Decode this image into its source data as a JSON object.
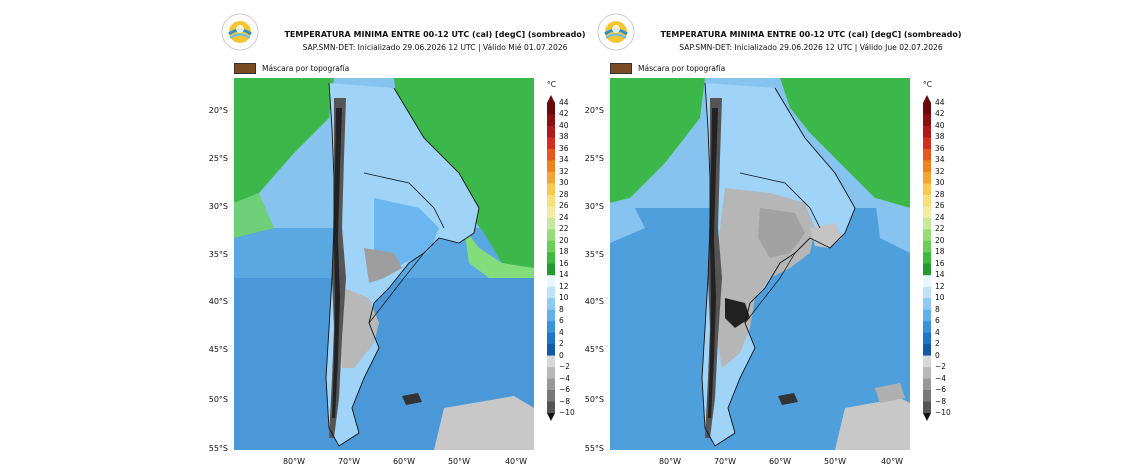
{
  "panels": [
    {
      "title": "TEMPERATURA MINIMA ENTRE 00-12 UTC (cal) [degC] (sombreado)",
      "subtitle": "SAP.SMN-DET: Inicializado 29.06.2026 12 UTC | Válido Mié 01.07.2026",
      "mask_label": "Máscara por topografía"
    },
    {
      "title": "TEMPERATURA MINIMA ENTRE 00-12 UTC (cal) [degC] (sombreado)",
      "subtitle": "SAP.SMN-DET: Inicializado 29.06.2026 12 UTC | Válido Jue 02.07.2026",
      "mask_label": "Máscara por topografía"
    }
  ],
  "lat_labels": [
    "20°S",
    "25°S",
    "30°S",
    "35°S",
    "40°S",
    "45°S",
    "50°S",
    "55°S"
  ],
  "lon_labels": [
    "80°W",
    "70°W",
    "60°W",
    "50°W",
    "40°W"
  ],
  "colorbar": {
    "unit": "°C",
    "ticks": [
      "44",
      "42",
      "40",
      "38",
      "36",
      "34",
      "32",
      "30",
      "28",
      "26",
      "24",
      "22",
      "20",
      "18",
      "16",
      "14",
      "12",
      "10",
      "8",
      "6",
      "4",
      "2",
      "0",
      "−2",
      "−4",
      "−6",
      "−8",
      "−10"
    ],
    "colors": [
      "#6b0a0a",
      "#8c1010",
      "#b01c1c",
      "#d2301e",
      "#e6581e",
      "#f0821e",
      "#f5a532",
      "#f8c850",
      "#fae07a",
      "#f2eba0",
      "#c8e8a0",
      "#98dc7a",
      "#6ccd5a",
      "#40b840",
      "#249a30",
      "#e8f6ff",
      "#bfe3fb",
      "#8fcaf3",
      "#62b0ea",
      "#3a94dc",
      "#1f76c8",
      "#115aa8",
      "#d8d8d8",
      "#b8b8b8",
      "#989898",
      "#787878",
      "#555555",
      "#333333"
    ]
  }
}
